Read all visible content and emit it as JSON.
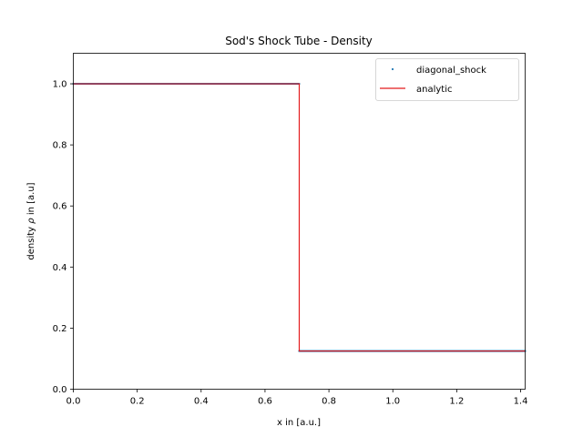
{
  "chart_data": {
    "type": "line",
    "title": "Sod's Shock Tube - Density",
    "xlabel": "x in [a.u.]",
    "ylabel_prefix": "density ",
    "ylabel_symbol": "ρ",
    "ylabel_suffix": " in [a.u]",
    "xlim": [
      0,
      1.4142
    ],
    "ylim": [
      0,
      1.1
    ],
    "x_ticks": [
      0.0,
      0.2,
      0.4,
      0.6,
      0.8,
      1.0,
      1.2,
      1.4
    ],
    "x_tick_labels": [
      "0.0",
      "0.2",
      "0.4",
      "0.6",
      "0.8",
      "1.0",
      "1.2",
      "1.4"
    ],
    "y_ticks": [
      0.0,
      0.2,
      0.4,
      0.6,
      0.8,
      1.0
    ],
    "y_tick_labels": [
      "0.0",
      "0.2",
      "0.4",
      "0.6",
      "0.8",
      "1.0"
    ],
    "grid": false,
    "legend_position": "upper right",
    "series": [
      {
        "name": "diagonal_shock",
        "style": "scatter",
        "color": "#1f77b4",
        "segments": [
          {
            "x_start": 0.0,
            "x_end": 0.7071,
            "y": 1.0
          },
          {
            "x_start": 0.7071,
            "x_end": 1.4142,
            "y": 0.125
          }
        ]
      },
      {
        "name": "analytic",
        "style": "line",
        "color": "#e41a1c",
        "x": [
          0.0,
          0.7071,
          0.7071,
          1.4142
        ],
        "y": [
          1.0,
          1.0,
          0.125,
          0.125
        ]
      }
    ]
  }
}
